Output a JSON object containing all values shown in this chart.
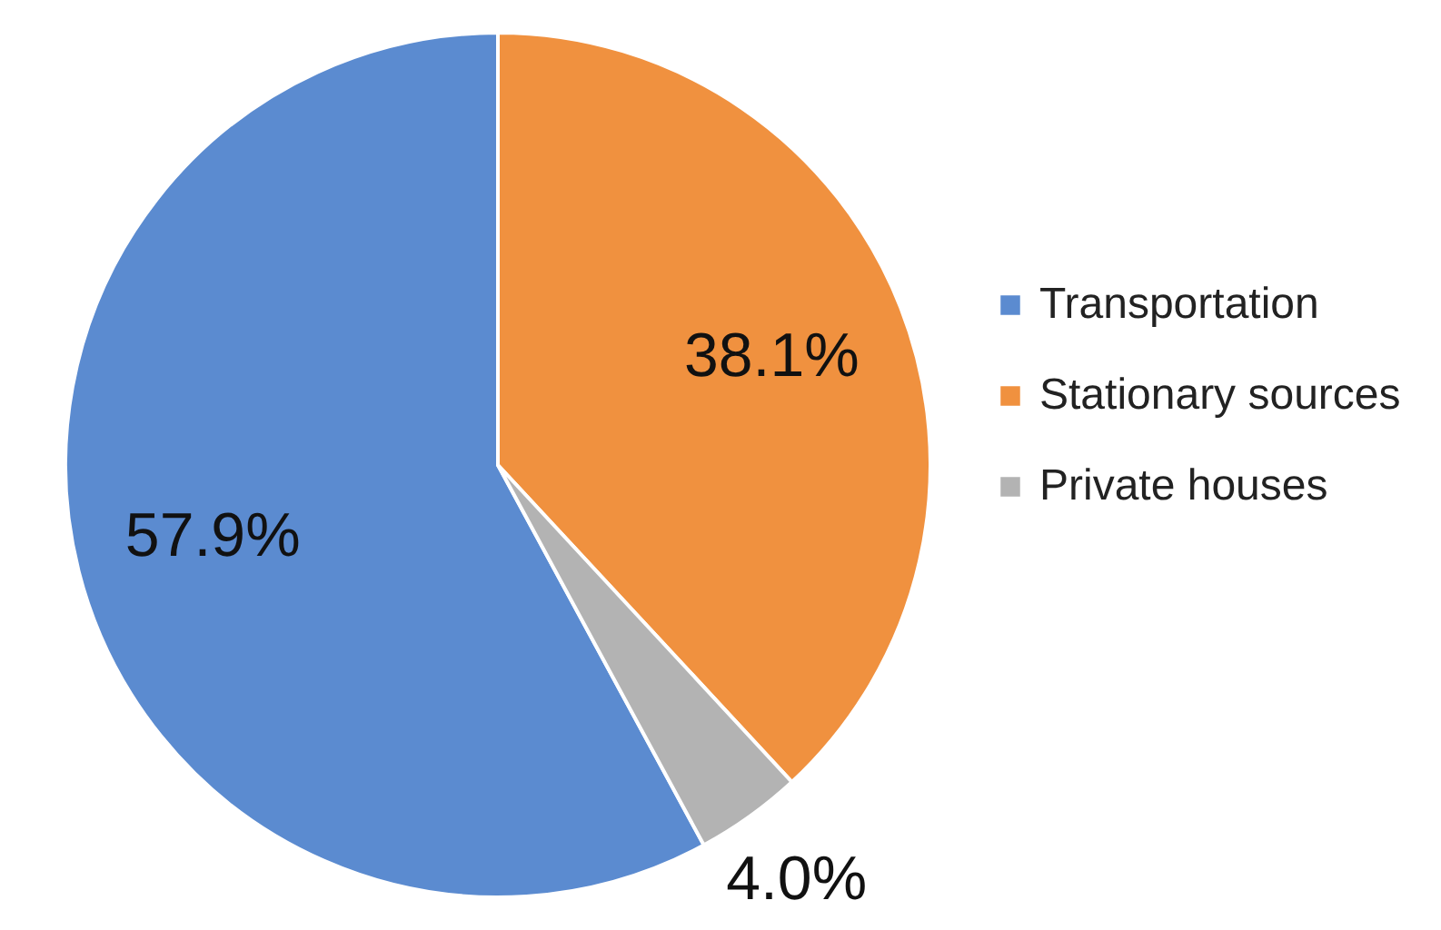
{
  "chart_data": {
    "type": "pie",
    "categories": [
      "Transportation",
      "Stationary sources",
      "Private houses"
    ],
    "values": [
      57.9,
      38.1,
      4.0
    ],
    "colors": [
      "#5b8bd0",
      "#f0913f",
      "#b3b3b3"
    ],
    "value_labels": [
      "57.9%",
      "38.1%",
      "4.0%"
    ],
    "legend": "right"
  }
}
